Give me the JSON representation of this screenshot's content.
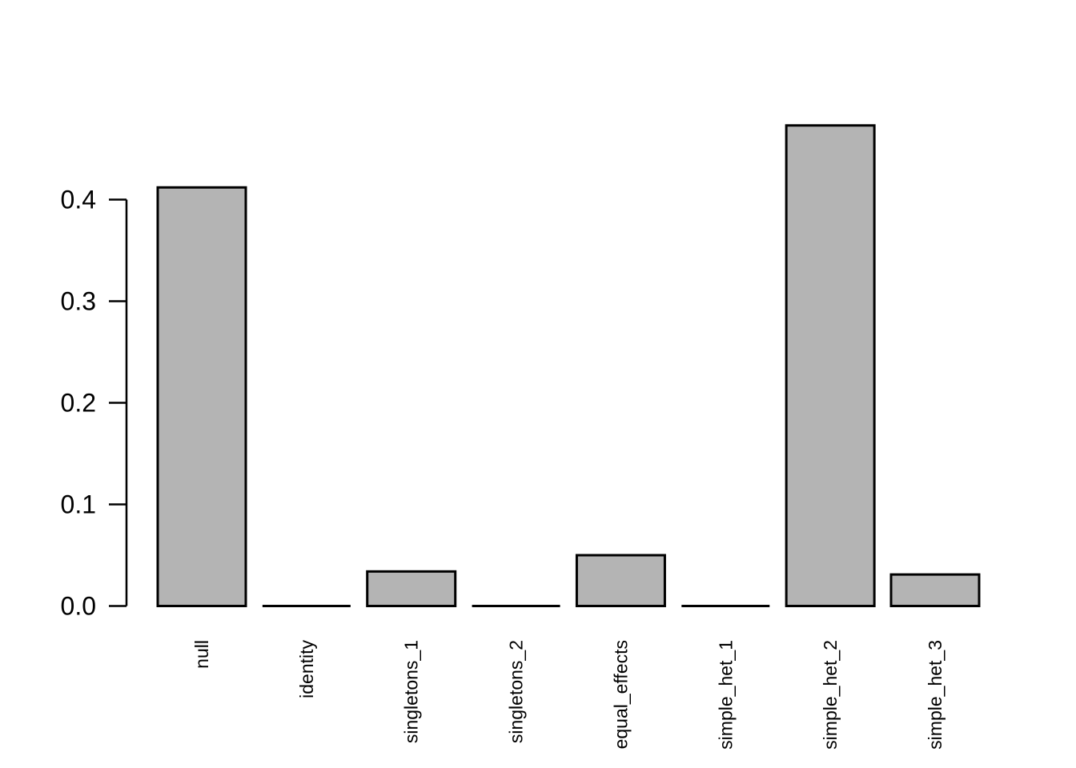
{
  "chart_data": {
    "type": "bar",
    "title": "",
    "xlabel": "",
    "ylabel": "",
    "categories": [
      "null",
      "identity",
      "singletons_1",
      "singletons_2",
      "equal_effects",
      "simple_het_1",
      "simple_het_2",
      "simple_het_3"
    ],
    "values": [
      0.412,
      0,
      0.034,
      0,
      0.05,
      0,
      0.473,
      0.031
    ],
    "ylim": [
      0,
      0.48
    ],
    "yticks": [
      0,
      0.1,
      0.2,
      0.3,
      0.4
    ],
    "ytick_labels": [
      "0.0",
      "0.1",
      "0.2",
      "0.3",
      "0.4"
    ],
    "grid": false,
    "legend": "none",
    "x_label_rotation_degrees": 90,
    "style": {
      "background_color": "#ffffff",
      "bar_fill_color": "#b4b4b4",
      "bar_border_color": "#000000",
      "axis_color": "#000000",
      "text_color": "#000000"
    }
  }
}
